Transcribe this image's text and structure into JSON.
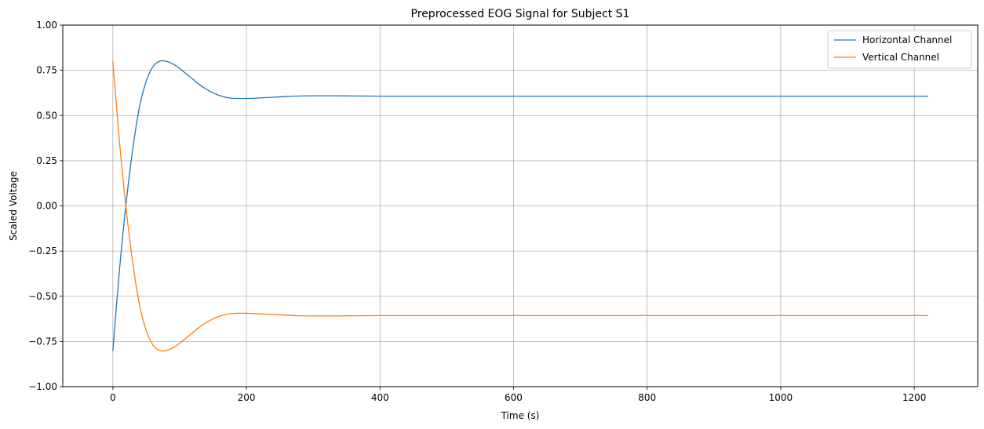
{
  "chart_data": {
    "type": "line",
    "title": "Preprocessed EOG Signal for Subject S1",
    "xlabel": "Time (s)",
    "ylabel": "Scaled Voltage",
    "xlim": [
      -75,
      1295
    ],
    "ylim": [
      -1.0,
      1.0
    ],
    "x_ticks": [
      0,
      200,
      400,
      600,
      800,
      1000,
      1200
    ],
    "x_tick_labels": [
      "0",
      "200",
      "400",
      "600",
      "800",
      "1000",
      "1200"
    ],
    "y_ticks": [
      -1.0,
      -0.75,
      -0.5,
      -0.25,
      0.0,
      0.25,
      0.5,
      0.75,
      1.0
    ],
    "y_tick_labels": [
      "−1.00",
      "−0.75",
      "−0.50",
      "−0.25",
      "0.00",
      "0.25",
      "0.50",
      "0.75",
      "1.00"
    ],
    "grid": true,
    "legend_position": "top-right",
    "series": [
      {
        "name": "Horizontal Channel",
        "color": "#1f77b4",
        "x": [
          0,
          10,
          20,
          30,
          40,
          50,
          60,
          70,
          80,
          90,
          100,
          110,
          120,
          130,
          140,
          150,
          160,
          170,
          180,
          190,
          200,
          220,
          240,
          260,
          280,
          300,
          320,
          340,
          360,
          400,
          500,
          600,
          700,
          800,
          900,
          1000,
          1100,
          1220
        ],
        "values": [
          -0.8,
          -0.35,
          0.02,
          0.32,
          0.55,
          0.69,
          0.77,
          0.8,
          0.8,
          0.785,
          0.76,
          0.73,
          0.7,
          0.67,
          0.645,
          0.625,
          0.61,
          0.6,
          0.595,
          0.594,
          0.594,
          0.597,
          0.601,
          0.605,
          0.608,
          0.609,
          0.609,
          0.609,
          0.608,
          0.607,
          0.607,
          0.607,
          0.607,
          0.607,
          0.607,
          0.607,
          0.607,
          0.607
        ]
      },
      {
        "name": "Vertical Channel",
        "color": "#ff7f0e",
        "x": [
          0,
          10,
          20,
          30,
          40,
          50,
          60,
          70,
          80,
          90,
          100,
          110,
          120,
          130,
          140,
          150,
          160,
          170,
          180,
          190,
          200,
          220,
          240,
          260,
          280,
          300,
          320,
          340,
          360,
          400,
          500,
          600,
          700,
          800,
          900,
          1000,
          1100,
          1220
        ],
        "values": [
          0.8,
          0.35,
          -0.02,
          -0.32,
          -0.55,
          -0.69,
          -0.77,
          -0.8,
          -0.8,
          -0.785,
          -0.76,
          -0.73,
          -0.7,
          -0.67,
          -0.645,
          -0.625,
          -0.61,
          -0.6,
          -0.595,
          -0.594,
          -0.594,
          -0.597,
          -0.601,
          -0.605,
          -0.608,
          -0.609,
          -0.609,
          -0.609,
          -0.608,
          -0.607,
          -0.607,
          -0.607,
          -0.607,
          -0.607,
          -0.607,
          -0.607,
          -0.607,
          -0.607
        ]
      }
    ]
  }
}
